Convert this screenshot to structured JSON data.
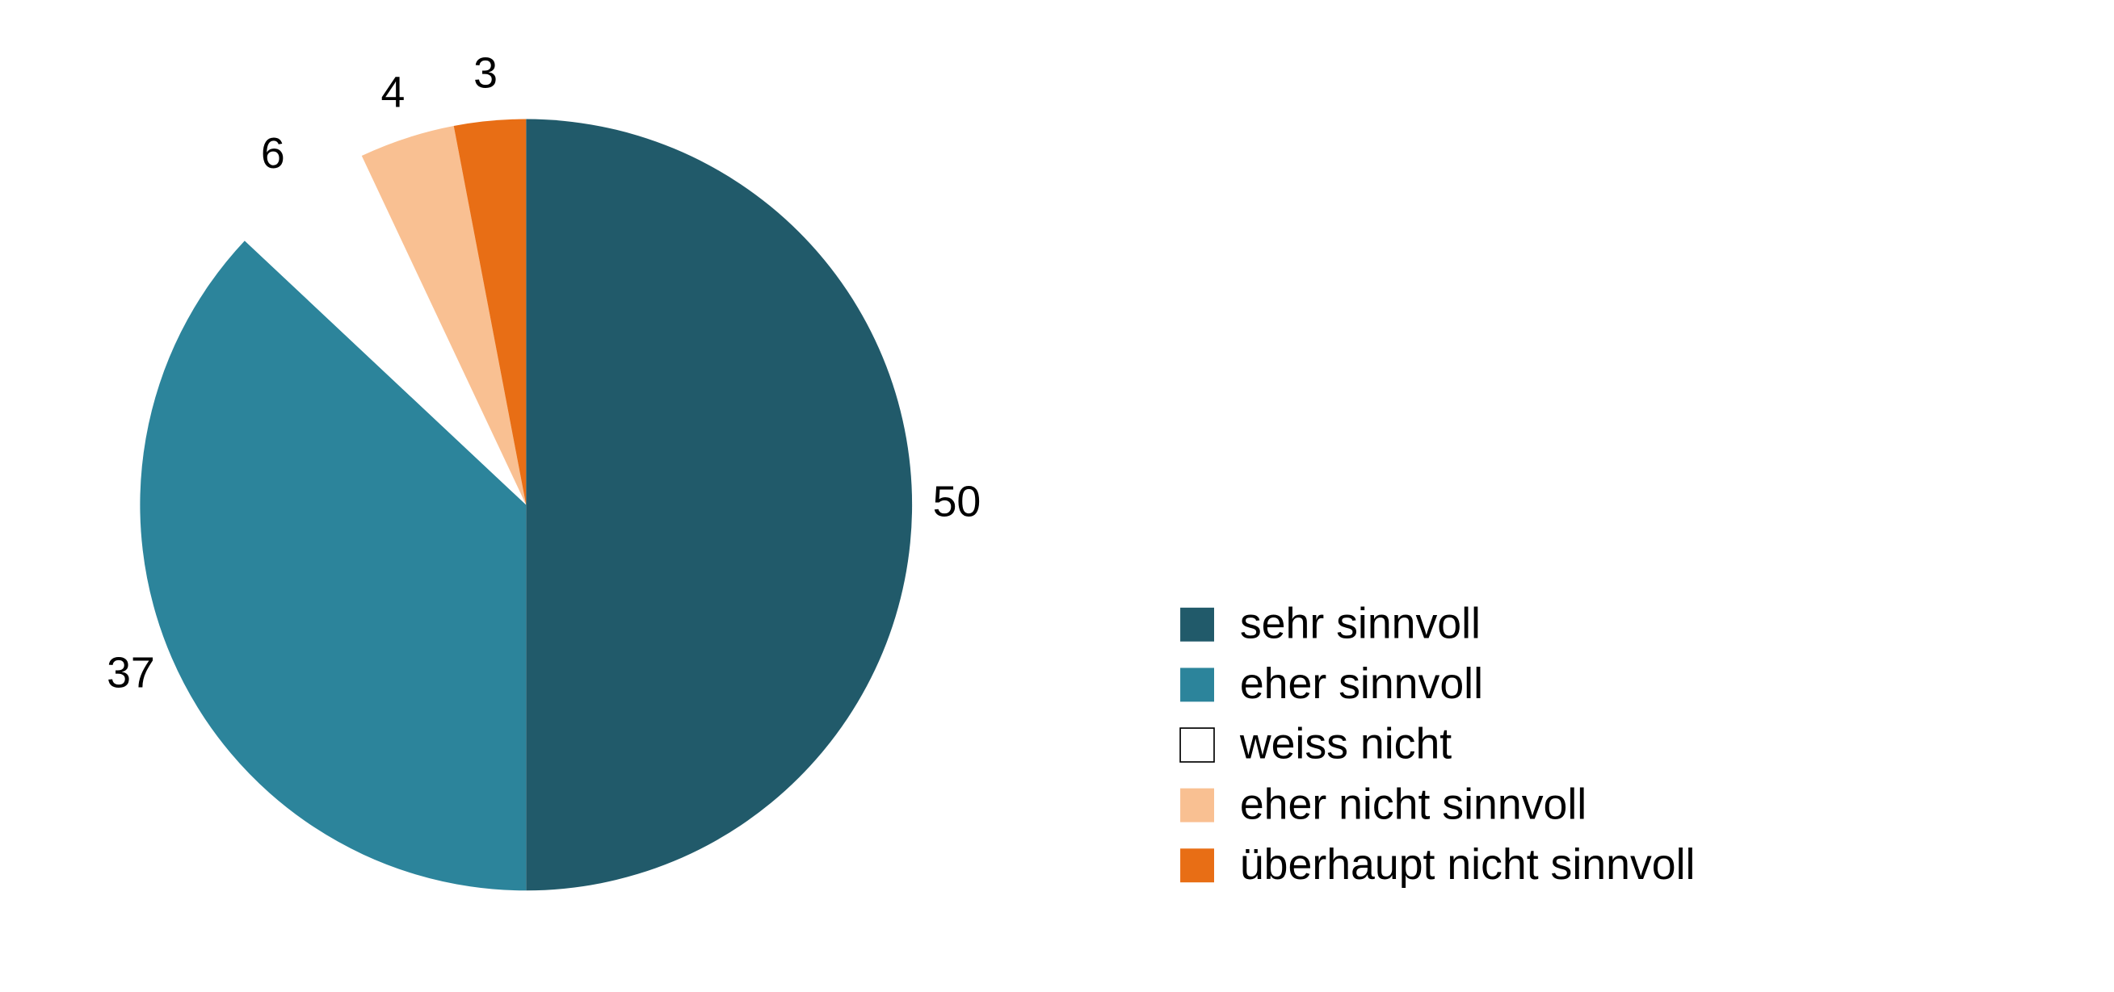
{
  "chart_data": {
    "type": "pie",
    "categories": [
      "sehr sinnvoll",
      "eher sinnvoll",
      "weiss nicht",
      "eher nicht sinnvoll",
      "überhaupt nicht sinnvoll"
    ],
    "values": [
      50,
      37,
      6,
      4,
      3
    ],
    "colors": [
      "#215a6a",
      "#2c849b",
      "#ffffff",
      "#f9c092",
      "#e86e15"
    ],
    "legend": "right"
  }
}
